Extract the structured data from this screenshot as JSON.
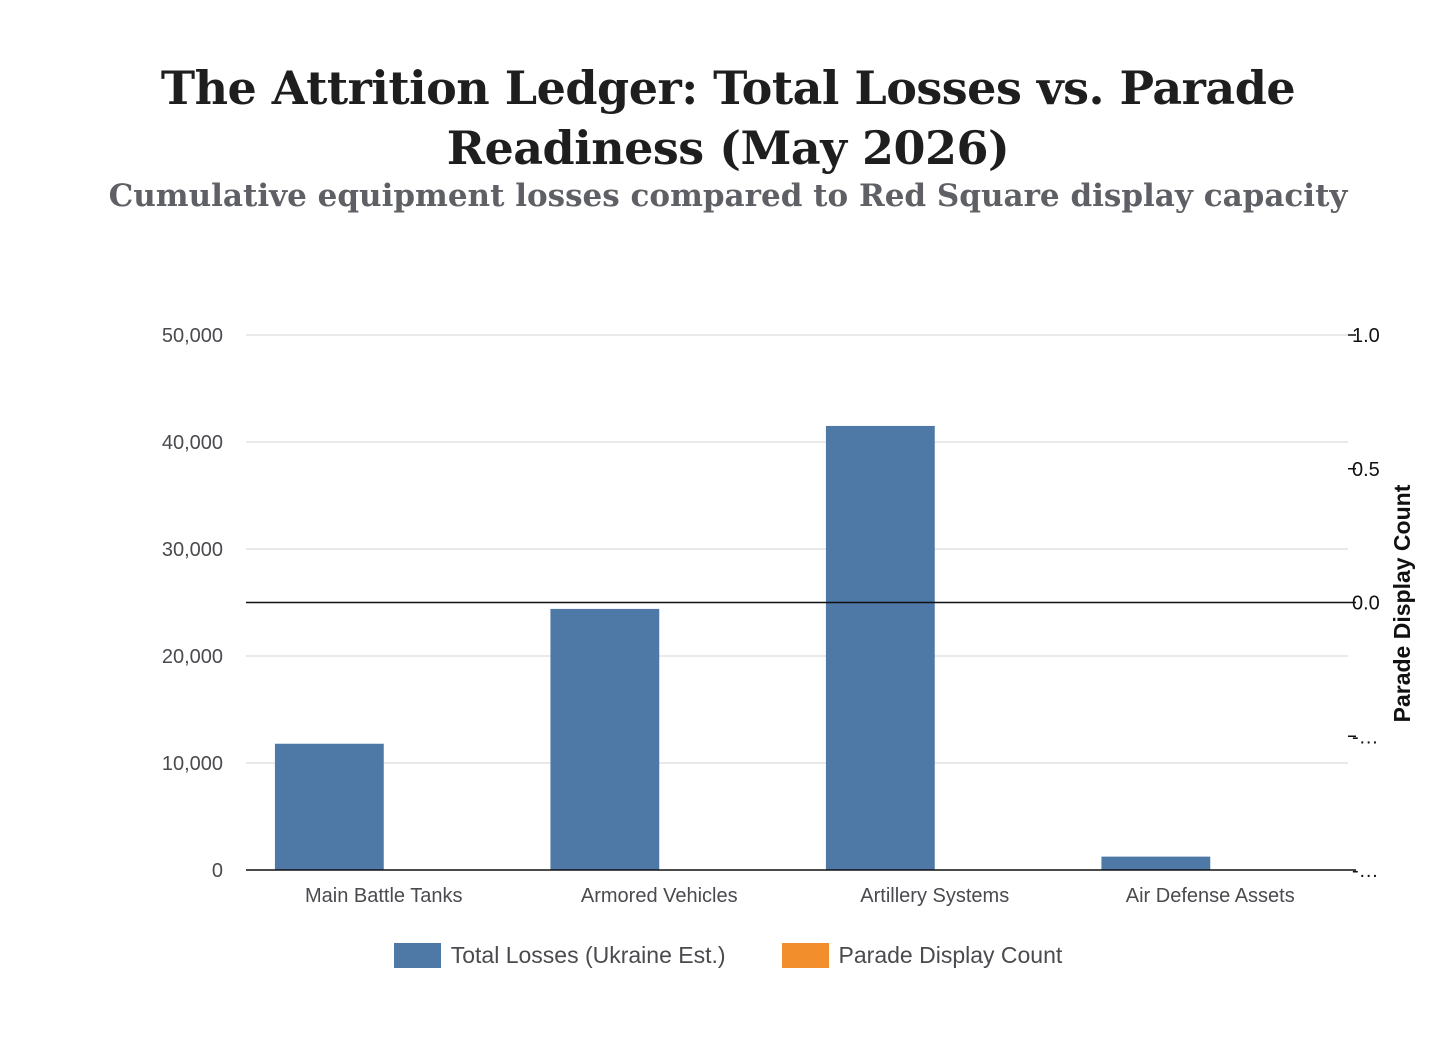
{
  "colors": {
    "losses": "#4e79a7",
    "parade": "#f28e2b",
    "grid": "#e2e2e2",
    "axis": "#111111"
  },
  "chart_data": {
    "type": "bar",
    "title": "The Attrition Ledger: Total Losses vs. Parade Readiness (May 2026)",
    "subtitle": "Cumulative equipment losses compared to Red Square display capacity",
    "categories": [
      "Main Battle Tanks",
      "Armored Vehicles",
      "Artillery Systems",
      "Air Defense Assets"
    ],
    "series": [
      {
        "name": "Total Losses (Ukraine Est.)",
        "axis": "left",
        "color": "#4e79a7",
        "values": [
          11800,
          24400,
          41500,
          1250
        ]
      },
      {
        "name": "Parade Display Count",
        "axis": "right",
        "color": "#f28e2b",
        "values": [
          0,
          0,
          0,
          0
        ]
      }
    ],
    "y_left": {
      "label": "",
      "ylim": [
        0,
        50000
      ],
      "ticks": [
        0,
        10000,
        20000,
        30000,
        40000,
        50000
      ],
      "tick_labels": [
        "0",
        "10,000",
        "20,000",
        "30,000",
        "40,000",
        "50,000"
      ]
    },
    "y_right": {
      "label": "Parade Display Count",
      "ylim": [
        -1,
        1
      ],
      "ticks": [
        -1,
        -0.5,
        0,
        0.5,
        1
      ],
      "tick_labels": [
        "-…",
        "-…",
        "0.0",
        "0.5",
        "1.0"
      ]
    },
    "grid": true,
    "legend_position": "bottom"
  }
}
